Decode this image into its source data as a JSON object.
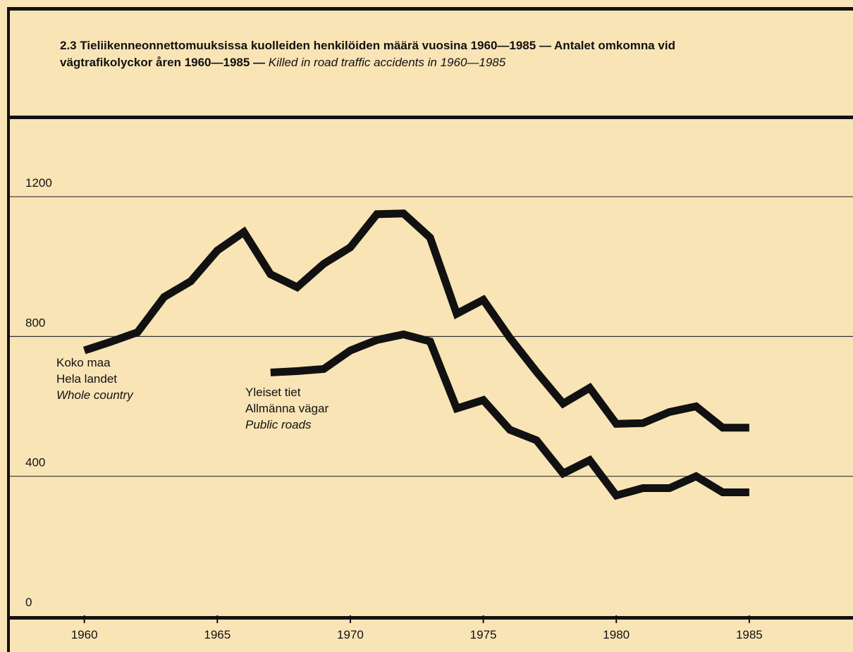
{
  "chart_data": {
    "type": "line",
    "title": [
      "2.3 Tieliikenneonnettomuuksissa kuolleiden henkilöiden määrä vuosina 1960—1985 — Antalet omkomna vid",
      "vägtrafikolyckor åren 1960—1985 —"
    ],
    "title_english": "Killed in road traffic accidents in 1960—1985",
    "x": [
      1960,
      1961,
      1962,
      1963,
      1964,
      1965,
      1966,
      1967,
      1968,
      1969,
      1970,
      1971,
      1972,
      1973,
      1974,
      1975,
      1976,
      1977,
      1978,
      1979,
      1980,
      1981,
      1982,
      1983,
      1984,
      1985
    ],
    "series": [
      {
        "label": [
          "Koko maa",
          "Hela landet",
          "Whole country"
        ],
        "color": "#111111",
        "values": [
          760,
          785,
          812,
          913,
          958,
          1046,
          1099,
          978,
          941,
          1008,
          1055,
          1150,
          1152,
          1083,
          865,
          905,
          796,
          699,
          608,
          653,
          550,
          552,
          584,
          600,
          539,
          539
        ]
      },
      {
        "label": [
          "Yleiset tiet",
          "Allmänna vägar",
          "Public roads"
        ],
        "color": "#111111",
        "values": [
          null,
          null,
          null,
          null,
          null,
          null,
          null,
          697,
          701,
          707,
          760,
          790,
          806,
          786,
          594,
          618,
          533,
          503,
          408,
          446,
          345,
          366,
          366,
          400,
          354,
          354
        ]
      }
    ],
    "xlim": [
      1957.2,
      1988.9
    ],
    "xticks": [
      1960,
      1965,
      1970,
      1975,
      1980,
      1985
    ],
    "ylim": [
      0,
      1422
    ],
    "yticks": [
      0,
      400,
      800,
      1200
    ],
    "grid": true
  }
}
